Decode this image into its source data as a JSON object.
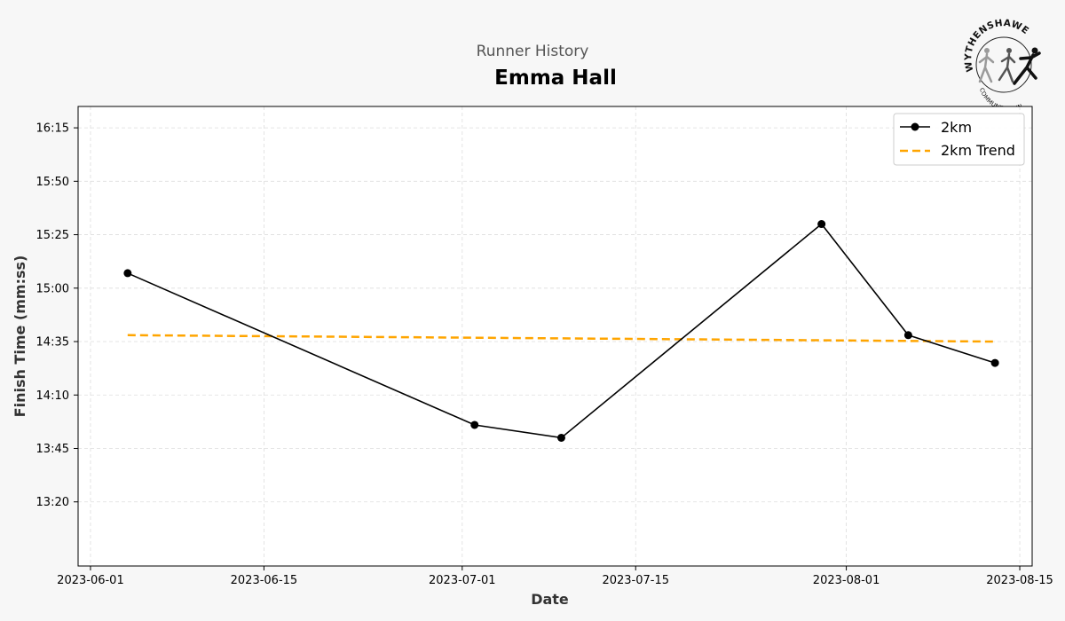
{
  "header": {
    "suptitle": "Runner History",
    "title": "Emma Hall"
  },
  "logo": {
    "top_text": "WYTHENSHAWE",
    "bottom_text": "COMMUNITY RUN"
  },
  "colors": {
    "background": "#f7f7f7",
    "series": "#000000",
    "trend": "#FFA500",
    "grid": "#dddddd"
  },
  "chart_data": {
    "type": "line",
    "xlabel": "Date",
    "ylabel": "Finish Time (mm:ss)",
    "x_range": [
      "2023-05-31",
      "2023-08-16"
    ],
    "y_range_seconds": [
      770,
      985
    ],
    "x_ticks": [
      "2023-06-01",
      "2023-06-15",
      "2023-07-01",
      "2023-07-15",
      "2023-08-01",
      "2023-08-15"
    ],
    "y_ticks": [
      "13:20",
      "13:45",
      "14:10",
      "14:35",
      "15:00",
      "15:25",
      "15:50",
      "16:15"
    ],
    "grid": true,
    "legend_position": "top-right",
    "series": [
      {
        "name": "2km",
        "style": "solid line with circle markers",
        "x": [
          "2023-06-04",
          "2023-07-02",
          "2023-07-09",
          "2023-07-30",
          "2023-08-06",
          "2023-08-13"
        ],
        "y": [
          "15:07",
          "13:56",
          "13:50",
          "15:30",
          "14:38",
          "14:25"
        ]
      },
      {
        "name": "2km Trend",
        "style": "dashed line",
        "x": [
          "2023-06-04",
          "2023-08-13"
        ],
        "y": [
          "14:38",
          "14:35"
        ]
      }
    ]
  }
}
